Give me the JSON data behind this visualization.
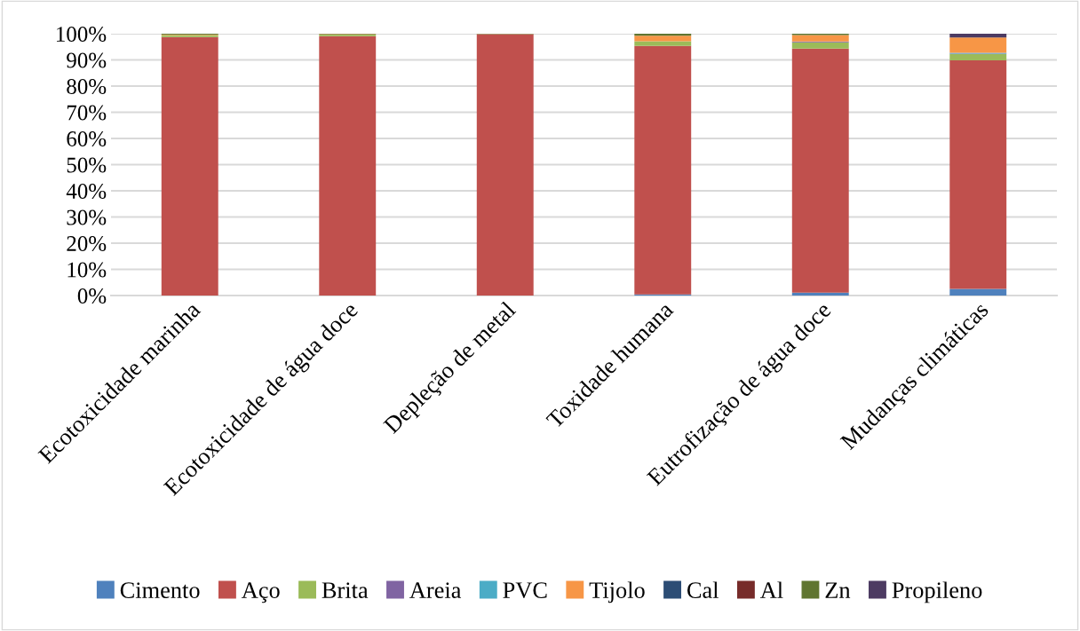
{
  "chart_data": {
    "type": "bar",
    "stacked": true,
    "categories": [
      "Ecotoxicidade marinha",
      "Ecotoxicidade de água doce",
      "Depleção de metal",
      "Toxidade humana",
      "Eutrofização de água doce",
      "Mudanças climáticas"
    ],
    "series": [
      {
        "name": "Cimento",
        "color": "#4f81bd",
        "values": [
          0,
          0,
          0,
          0.4,
          1.1,
          2.5
        ]
      },
      {
        "name": "Aço",
        "color": "#c0504d",
        "values": [
          98.7,
          99.1,
          99.8,
          94.9,
          93.2,
          87.3
        ]
      },
      {
        "name": "Brita",
        "color": "#9bbb59",
        "values": [
          0.8,
          0.6,
          0.1,
          1.8,
          2.4,
          2.4
        ]
      },
      {
        "name": "Areia",
        "color": "#8064a2",
        "values": [
          0,
          0,
          0,
          0,
          0.3,
          0.2
        ]
      },
      {
        "name": "PVC",
        "color": "#4bacc6",
        "values": [
          0,
          0,
          0,
          0,
          0,
          0.3
        ]
      },
      {
        "name": "Tijolo",
        "color": "#f79646",
        "values": [
          0.2,
          0.1,
          0,
          2.1,
          2.5,
          5.9
        ]
      },
      {
        "name": "Cal",
        "color": "#2c4d75",
        "values": [
          0,
          0,
          0,
          0,
          0,
          0
        ]
      },
      {
        "name": "Al",
        "color": "#772c2a",
        "values": [
          0,
          0,
          0,
          0,
          0,
          0
        ]
      },
      {
        "name": "Zn",
        "color": "#5f7530",
        "values": [
          0.3,
          0.2,
          0.1,
          0.8,
          0.5,
          0
        ]
      },
      {
        "name": "Propileno",
        "color": "#4d3b62",
        "values": [
          0,
          0,
          0,
          0,
          0,
          1.4
        ]
      }
    ],
    "ylim": [
      0,
      100
    ],
    "yticks": [
      {
        "value": 0,
        "label": "0%"
      },
      {
        "value": 10,
        "label": "10%"
      },
      {
        "value": 20,
        "label": "20%"
      },
      {
        "value": 30,
        "label": "30%"
      },
      {
        "value": 40,
        "label": "40%"
      },
      {
        "value": 50,
        "label": "50%"
      },
      {
        "value": 60,
        "label": "60%"
      },
      {
        "value": 70,
        "label": "70%"
      },
      {
        "value": 80,
        "label": "80%"
      },
      {
        "value": 90,
        "label": "90%"
      },
      {
        "value": 100,
        "label": "100%"
      }
    ],
    "grid": "y",
    "legend": "bottom"
  }
}
